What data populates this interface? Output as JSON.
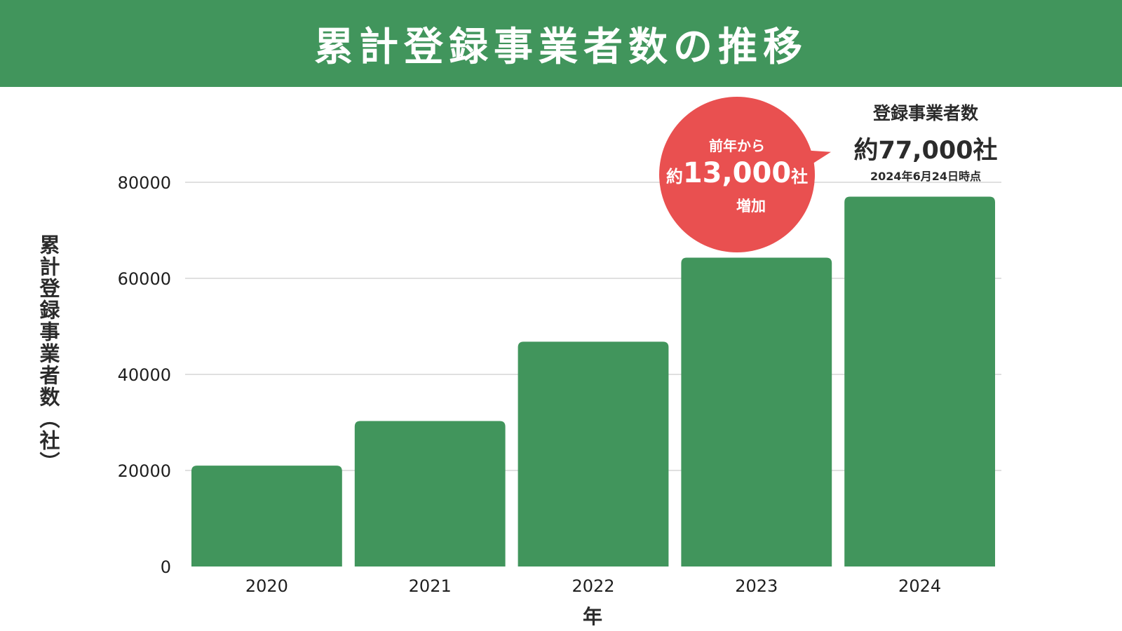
{
  "chart_data": {
    "type": "bar",
    "title": "累計登録事業者数の推移",
    "xlabel": "年",
    "ylabel": "累計登録事業者数（社）",
    "categories": [
      "2020",
      "2021",
      "2022",
      "2023",
      "2024"
    ],
    "values": [
      21000,
      30300,
      46800,
      64300,
      77000
    ],
    "ylim": [
      0,
      80000
    ],
    "yticks": [
      0,
      20000,
      40000,
      60000,
      80000
    ],
    "grid": true,
    "legend": "none",
    "bar_color": "#41955c",
    "annotations": {
      "callout": {
        "line1": "前年から",
        "prefix": "約",
        "value": "13,000",
        "suffix": "社",
        "line3": "増加",
        "color": "#e95050"
      },
      "latest": {
        "label": "登録事業者数",
        "value": "約77,000社",
        "date": "2024年6月24日時点"
      }
    }
  },
  "colors": {
    "header": "#41955c",
    "grid": "#d6d6d6",
    "text": "#2b2b2b"
  }
}
